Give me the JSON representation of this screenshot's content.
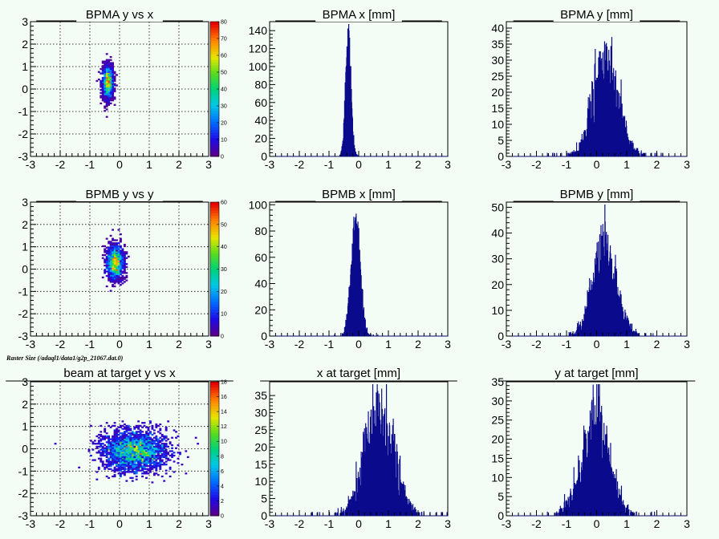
{
  "page": {
    "background": "#f4fcf6",
    "overlay_note": "Raster Size (/adaql1/data1/g2p_21067.dat.0)"
  },
  "colors": {
    "hist_fill": "#0a0a8c",
    "frame": "#000000",
    "grid": "#000000"
  },
  "chart_data": [
    {
      "type": "heatmap",
      "title": "BPMA y vs x",
      "xlim": [
        -3,
        3
      ],
      "ylim": [
        -3,
        3
      ],
      "xticks": [
        "-3",
        "-2",
        "-1",
        "0",
        "1",
        "2",
        "3"
      ],
      "yticks": [
        "-3",
        "-2",
        "-1",
        "0",
        "1",
        "2",
        "3"
      ],
      "grid": true,
      "blob": {
        "center_x": -0.4,
        "center_y": 0.3,
        "sigma_x": 0.09,
        "sigma_y": 0.38,
        "n_points": 1600
      },
      "colorbar": {
        "max": 80,
        "ticks": [
          "0",
          "10",
          "20",
          "30",
          "40",
          "50",
          "60",
          "70",
          "80"
        ]
      }
    },
    {
      "type": "bar",
      "title": "BPMA x [mm]",
      "xlim": [
        -3,
        3
      ],
      "ylim": [
        0,
        150
      ],
      "xticks": [
        "-3",
        "-2",
        "-1",
        "0",
        "1",
        "2",
        "3"
      ],
      "yticks": [
        "0",
        "20",
        "40",
        "60",
        "80",
        "100",
        "120",
        "140"
      ],
      "grid": false,
      "distribution": {
        "mean": -0.35,
        "sigma": 0.09,
        "peak": 140,
        "noise": 0.1
      }
    },
    {
      "type": "bar",
      "title": "BPMA y [mm]",
      "xlim": [
        -3,
        3
      ],
      "ylim": [
        0,
        42
      ],
      "xticks": [
        "-3",
        "-2",
        "-1",
        "0",
        "1",
        "2",
        "3"
      ],
      "yticks": [
        "0",
        "5",
        "10",
        "15",
        "20",
        "25",
        "30",
        "35",
        "40"
      ],
      "grid": false,
      "distribution": {
        "mean": 0.3,
        "sigma": 0.4,
        "peak": 29,
        "noise": 0.3
      }
    },
    {
      "type": "heatmap",
      "title": "BPMB y vs y",
      "xlim": [
        -3,
        3
      ],
      "ylim": [
        -3,
        3
      ],
      "xticks": [
        "-3",
        "-2",
        "-1",
        "0",
        "1",
        "2",
        "3"
      ],
      "yticks": [
        "-3",
        "-2",
        "-1",
        "0",
        "1",
        "2",
        "3"
      ],
      "grid": true,
      "blob": {
        "center_x": -0.15,
        "center_y": 0.3,
        "sigma_x": 0.14,
        "sigma_y": 0.38,
        "n_points": 1800
      },
      "colorbar": {
        "max": 60,
        "ticks": [
          "0",
          "10",
          "20",
          "30",
          "40",
          "50",
          "60"
        ]
      }
    },
    {
      "type": "bar",
      "title": "BPMB x [mm]",
      "xlim": [
        -3,
        3
      ],
      "ylim": [
        0,
        102
      ],
      "xticks": [
        "-3",
        "-2",
        "-1",
        "0",
        "1",
        "2",
        "3"
      ],
      "yticks": [
        "0",
        "20",
        "40",
        "60",
        "80",
        "100"
      ],
      "grid": false,
      "distribution": {
        "mean": -0.1,
        "sigma": 0.15,
        "peak": 90,
        "noise": 0.12
      }
    },
    {
      "type": "bar",
      "title": "BPMB y [mm]",
      "xlim": [
        -3,
        3
      ],
      "ylim": [
        0,
        52
      ],
      "xticks": [
        "-3",
        "-2",
        "-1",
        "0",
        "1",
        "2",
        "3"
      ],
      "yticks": [
        "0",
        "10",
        "20",
        "30",
        "40",
        "50"
      ],
      "grid": false,
      "distribution": {
        "mean": 0.25,
        "sigma": 0.38,
        "peak": 32,
        "noise": 0.3
      }
    },
    {
      "type": "heatmap",
      "title": "beam at target y vs x",
      "xlim": [
        -3,
        3
      ],
      "ylim": [
        -3,
        3
      ],
      "xticks": [
        "-3",
        "-2",
        "-1",
        "0",
        "1",
        "2",
        "3"
      ],
      "yticks": [
        "-3",
        "-2",
        "-1",
        "0",
        "1",
        "2",
        "3"
      ],
      "grid": true,
      "blob": {
        "center_x": 0.5,
        "center_y": -0.1,
        "sigma_x": 0.55,
        "sigma_y": 0.45,
        "n_points": 2600
      },
      "colorbar": {
        "max": 18,
        "ticks": [
          "0",
          "2",
          "4",
          "6",
          "8",
          "10",
          "12",
          "14",
          "16",
          "18"
        ]
      }
    },
    {
      "type": "bar",
      "title": "x at target [mm]",
      "xlim": [
        -3,
        3
      ],
      "ylim": [
        0,
        39
      ],
      "xticks": [
        "-3",
        "-2",
        "-1",
        "0",
        "1",
        "2",
        "3"
      ],
      "yticks": [
        "0",
        "5",
        "10",
        "15",
        "20",
        "25",
        "30",
        "35"
      ],
      "grid": false,
      "distribution": {
        "mean": 0.7,
        "sigma": 0.48,
        "peak": 28,
        "noise": 0.3
      }
    },
    {
      "type": "bar",
      "title": "y at target [mm]",
      "xlim": [
        -3,
        3
      ],
      "ylim": [
        0,
        35
      ],
      "xticks": [
        "-3",
        "-2",
        "-1",
        "0",
        "1",
        "2",
        "3"
      ],
      "yticks": [
        "0",
        "5",
        "10",
        "15",
        "20",
        "25",
        "30",
        "35"
      ],
      "grid": false,
      "distribution": {
        "mean": -0.05,
        "sigma": 0.45,
        "peak": 22,
        "noise": 0.3
      }
    }
  ]
}
